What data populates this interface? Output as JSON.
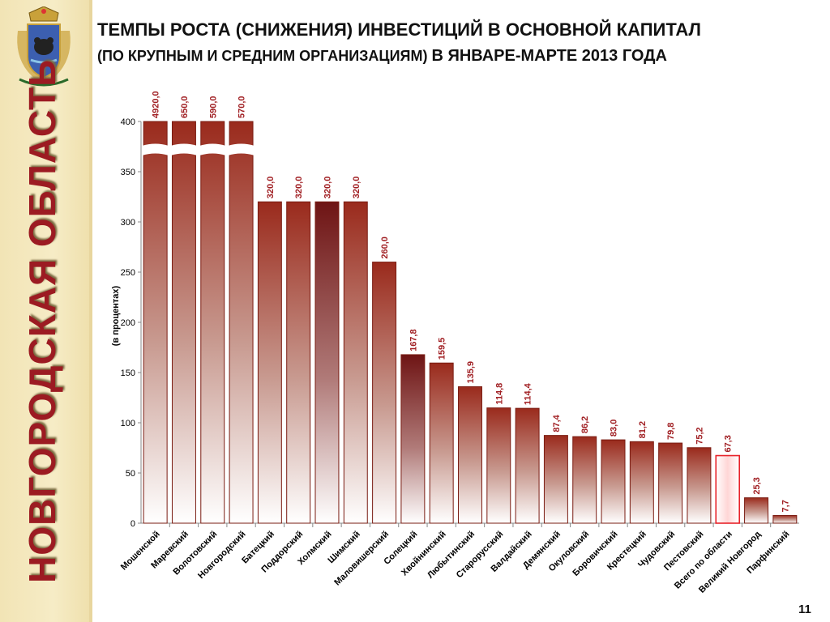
{
  "header": {
    "title_line1": "ТЕМПЫ РОСТА (СНИЖЕНИЯ) ИНВЕСТИЦИЙ В ОСНОВНОЙ КАПИТАЛ",
    "title_line2_a": "(ПО КРУПНЫМ И СРЕДНИМ ОРГАНИЗАЦИЯМ)",
    "title_line2_b": "В ЯНВАРЕ-МАРТЕ 2013 ГОДА"
  },
  "sidebar": {
    "region_title": "НОВГОРОДСКАЯ ОБЛАСТЬ",
    "emblem_icon": "coat-of-arms-icon"
  },
  "page_number": "11",
  "colors": {
    "bar_dark": "#9a2a1c",
    "bar_highlight": "#6e1414",
    "region_total": "#e8232a",
    "label_red": "#a01e22",
    "sidebar_bg": "#f2e4b5"
  },
  "chart_data": {
    "type": "bar",
    "ylabel": "(в процентах)",
    "ylim": [
      0,
      400
    ],
    "yticks": [
      0,
      50,
      100,
      150,
      200,
      250,
      300,
      350,
      400
    ],
    "axis_break": true,
    "categories": [
      "Мошенской",
      "Маревский",
      "Волотовский",
      "Новгородский",
      "Батецкий",
      "Поддорский",
      "Холмский",
      "Шимский",
      "Маловишерский",
      "Солецкий",
      "Хвойнинский",
      "Любытинский",
      "Старорусский",
      "Валдайский",
      "Демянский",
      "Окуловский",
      "Боровичский",
      "Крестецкий",
      "Чудовский",
      "Пестовский",
      "Всего по области",
      "Великий Новгород",
      "Парфинский"
    ],
    "values": [
      4920.0,
      650.0,
      590.0,
      570.0,
      320.0,
      320.0,
      320.0,
      320.0,
      260.0,
      167.8,
      159.5,
      135.9,
      114.8,
      114.4,
      87.4,
      86.2,
      83.0,
      81.2,
      79.8,
      75.2,
      67.3,
      25.3,
      7.7
    ],
    "value_labels": [
      "4920,0",
      "650,0",
      "590,0",
      "570,0",
      "320,0",
      "320,0",
      "320,0",
      "320,0",
      "260,0",
      "167,8",
      "159,5",
      "135,9",
      "114,8",
      "114,4",
      "87,4",
      "86,2",
      "83,0",
      "81,2",
      "79,8",
      "75,2",
      "67,3",
      "25,3",
      "7,7"
    ],
    "grid": false,
    "legend": "none"
  }
}
